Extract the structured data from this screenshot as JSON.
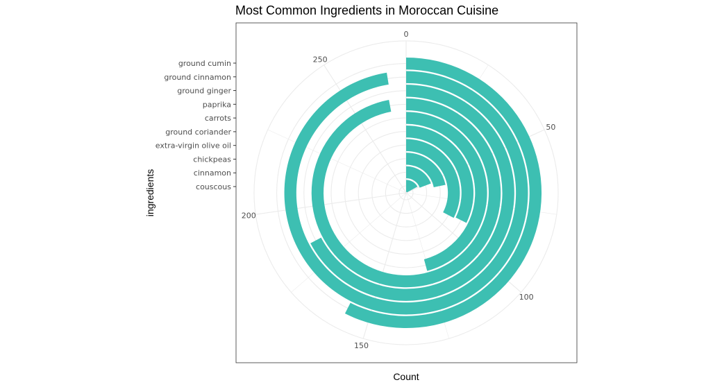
{
  "chart_data": {
    "type": "bar",
    "coord": "polar",
    "title": "Most Common Ingredients in Moroccan Cuisine",
    "xlabel": "ingredients",
    "ylabel": "Count",
    "categories": [
      "couscous",
      "cinnamon",
      "chickpeas",
      "extra-virgin olive oil",
      "ground coriander",
      "carrots",
      "paprika",
      "ground ginger",
      "ground cumin",
      "ground cinnamon"
    ],
    "axis_tick_order": [
      "ground cumin",
      "ground cinnamon",
      "ground ginger",
      "paprika",
      "carrots",
      "ground coriander",
      "extra-virgin olive oil",
      "chickpeas",
      "cinnamon",
      "couscous"
    ],
    "values": [
      47,
      53,
      60,
      90,
      89,
      126,
      267,
      185,
      268,
      158
    ],
    "count_ticks": [
      0,
      50,
      100,
      150,
      200,
      250
    ],
    "count_range": [
      0,
      275
    ],
    "bar_color": "#3dbfb2",
    "grid": true,
    "panel_border": true,
    "legend": "none"
  }
}
